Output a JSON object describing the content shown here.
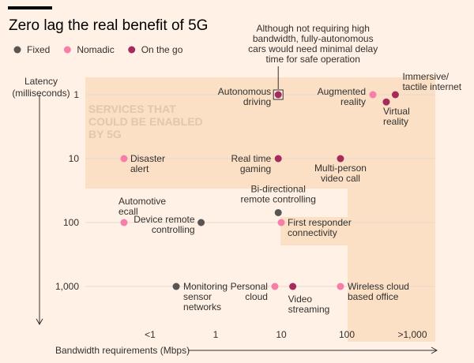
{
  "chart_data": {
    "type": "scatter",
    "title": "Zero lag the real benefit of 5G",
    "legend": {
      "placement": "top-left",
      "items": [
        {
          "name": "Fixed",
          "color": "#595553"
        },
        {
          "name": "Nomadic",
          "color": "#f77ea9"
        },
        {
          "name": "On the go",
          "color": "#a72a5c"
        }
      ]
    },
    "xlabel": "Bandwidth requirements (Mbps)",
    "ylabel": [
      "Latency",
      "(milliseconds)"
    ],
    "x_scale": "log",
    "y_scale": "log",
    "y_inverted": true,
    "x_ticks": [
      {
        "value": 0.1,
        "label": "<1"
      },
      {
        "value": 1,
        "label": "1"
      },
      {
        "value": 10,
        "label": "10"
      },
      {
        "value": 100,
        "label": "100"
      },
      {
        "value": 1000,
        "label": ">1,000"
      }
    ],
    "y_ticks": [
      {
        "value": 1,
        "label": "1"
      },
      {
        "value": 10,
        "label": "10"
      },
      {
        "value": 100,
        "label": "100"
      },
      {
        "value": 1000,
        "label": "1,000"
      }
    ],
    "region_label": [
      "SERVICES THAT",
      "COULD BE ENABLED",
      "BY 5G"
    ],
    "annotation": [
      "Although not requiring high",
      "bandwidth, fully-autonomous",
      "cars would need minimal delay",
      "time for safe operation"
    ],
    "series": [
      {
        "name": "Fixed",
        "points": [
          {
            "x": 0.6,
            "y": 100,
            "label": [
              "Device remote",
              "controlling"
            ]
          },
          {
            "x": 0.25,
            "y": 1000,
            "label": [
              "Monitoring",
              "sensor",
              "networks"
            ]
          },
          {
            "x": 9,
            "y": 70,
            "label": [
              "Bi-directional",
              "remote controlling"
            ]
          }
        ]
      },
      {
        "name": "Nomadic",
        "points": [
          {
            "x": 0.04,
            "y": 10,
            "label": [
              "Disaster",
              "alert"
            ]
          },
          {
            "x": 0.04,
            "y": 100,
            "label": [
              "Automotive",
              "ecall"
            ]
          },
          {
            "x": 10,
            "y": 100,
            "label": [
              "First responder",
              "connectivity"
            ]
          },
          {
            "x": 8,
            "y": 1000,
            "label": [
              "Personal",
              "cloud"
            ]
          },
          {
            "x": 80,
            "y": 1000,
            "label": [
              "Wireless cloud",
              "based office"
            ]
          },
          {
            "x": 250,
            "y": 1,
            "label": [
              "Augmented",
              "reality"
            ]
          }
        ]
      },
      {
        "name": "On the go",
        "points": [
          {
            "x": 9,
            "y": 1,
            "label": [
              "Autonomous",
              "driving"
            ]
          },
          {
            "x": 9,
            "y": 10,
            "label": [
              "Real time",
              "gaming"
            ]
          },
          {
            "x": 80,
            "y": 10,
            "label": [
              "Multi-person",
              "video call"
            ]
          },
          {
            "x": 15,
            "y": 1000,
            "label": [
              "Video",
              "streaming"
            ]
          },
          {
            "x": 400,
            "y": 1.3,
            "label": [
              "Virtual",
              "reality"
            ]
          },
          {
            "x": 550,
            "y": 1,
            "label": [
              "Immersive/",
              "tactile internet"
            ]
          }
        ]
      }
    ]
  }
}
